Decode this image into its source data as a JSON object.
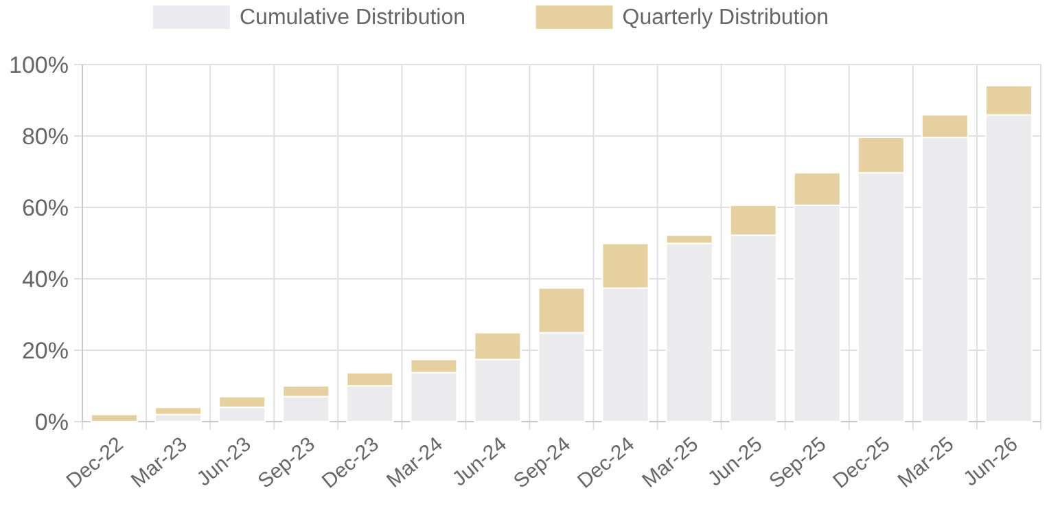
{
  "chart_data": {
    "type": "bar",
    "stacked": true,
    "categories": [
      "Dec-22",
      "Mar-23",
      "Jun-23",
      "Sep-23",
      "Dec-23",
      "Mar-24",
      "Jun-24",
      "Sep-24",
      "Dec-24",
      "Mar-25",
      "Jun-25",
      "Sep-25",
      "Dec-25",
      "Mar-25",
      "Jun-26"
    ],
    "series": [
      {
        "name": "Cumulative Distribution",
        "color": "#ebebed",
        "values": [
          0,
          2,
          4,
          7,
          10,
          13.7,
          17.4,
          24.9,
          37.4,
          49.9,
          52.2,
          60.6,
          69.7,
          79.6,
          85.9
        ]
      },
      {
        "name": "Quarterly Distribution",
        "color": "#e6d0a0",
        "values": [
          2,
          2,
          3,
          3,
          3.7,
          3.7,
          7.5,
          12.5,
          12.5,
          2.3,
          8.4,
          9.1,
          9.9,
          6.3,
          8.2
        ]
      }
    ],
    "ylim": [
      0,
      100
    ],
    "yticks": [
      {
        "value": 0,
        "label": "0%"
      },
      {
        "value": 20,
        "label": "20%"
      },
      {
        "value": 40,
        "label": "40%"
      },
      {
        "value": 60,
        "label": "60%"
      },
      {
        "value": 80,
        "label": "80%"
      },
      {
        "value": 100,
        "label": "100%"
      }
    ],
    "grid": true,
    "legend": "top"
  }
}
